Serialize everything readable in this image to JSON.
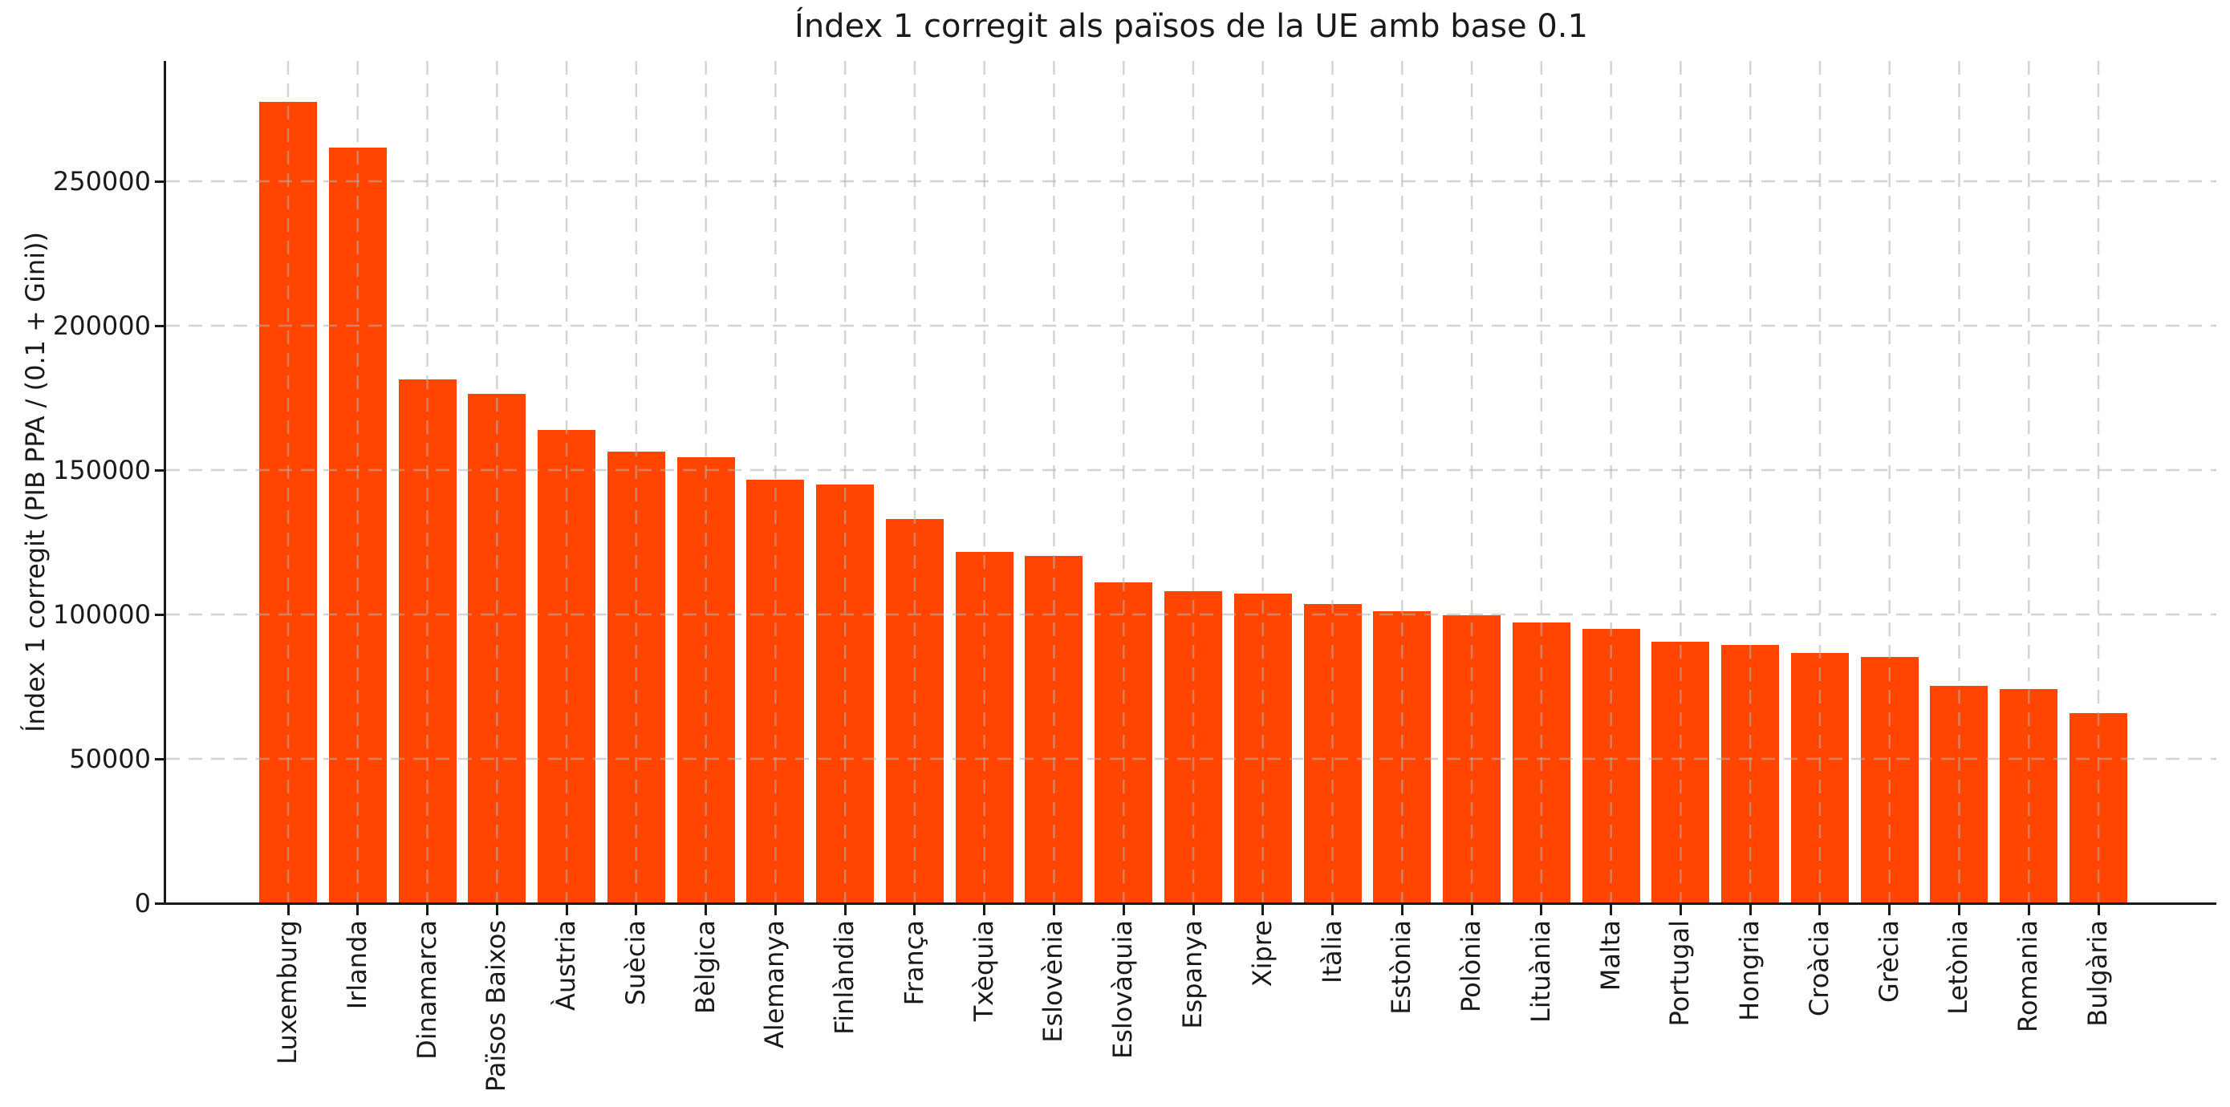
{
  "chart_data": {
    "type": "bar",
    "title": "Índex 1 corregit als països de la UE amb base 0.1",
    "xlabel": "",
    "ylabel": "Índex 1 corregit (PIB PPA / (0.1 + Gini))",
    "categories": [
      "Luxemburg",
      "Irlanda",
      "Dinamarca",
      "Països Baixos",
      "Àustria",
      "Suècia",
      "Bèlgica",
      "Alemanya",
      "Finlàndia",
      "França",
      "Txèquia",
      "Eslovènia",
      "Eslovàquia",
      "Espanya",
      "Xipre",
      "Itàlia",
      "Estònia",
      "Polònia",
      "Lituània",
      "Malta",
      "Portugal",
      "Hongria",
      "Croàcia",
      "Grècia",
      "Letònia",
      "Romania",
      "Bulgària"
    ],
    "values": [
      277400,
      261600,
      181300,
      176400,
      163800,
      156500,
      154500,
      146600,
      145100,
      133100,
      121600,
      120400,
      111000,
      108100,
      107200,
      103600,
      101100,
      99600,
      97200,
      95000,
      90600,
      89400,
      86700,
      85300,
      75300,
      74200,
      65700
    ],
    "yticks": [
      0,
      50000,
      100000,
      150000,
      200000,
      250000
    ],
    "ytick_labels": [
      "0",
      "50000",
      "100000",
      "150000",
      "200000",
      "250000"
    ],
    "ylim": [
      0,
      291667
    ],
    "bar_color": "#FF4500",
    "text_color": "#1a1a1a",
    "x_tick_label_rotation_deg": 90,
    "legend_position": "none",
    "grid": {
      "visible": true,
      "style": "dashed",
      "color": "#b0b0b0",
      "opacity": 0.55,
      "above_bars": true
    }
  }
}
